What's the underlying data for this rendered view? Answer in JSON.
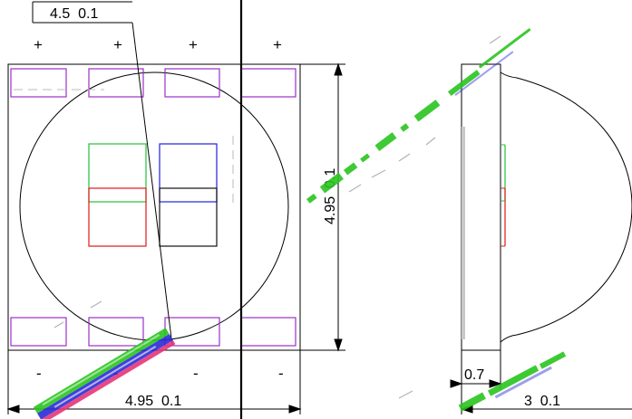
{
  "dimensions": {
    "top_width": "4.5  0.1",
    "bottom_width": "4.95  0.1",
    "height": "4.95  0.1",
    "side_step": "0.7",
    "side_depth": "3  0.1"
  },
  "polarity": {
    "top": [
      "+",
      "+",
      "+",
      "+"
    ],
    "bottom": [
      "-",
      "-",
      "-",
      "-"
    ]
  },
  "colors": {
    "pad_outline": "#9b30c8",
    "chip_green": "#22c03a",
    "chip_blue": "#2020e0",
    "chip_red": "#e01818",
    "chip_black": "#111111",
    "watermark_green": "#29c51e",
    "watermark_blue": "#2a2ad8",
    "watermark_pink": "#e5357a"
  }
}
